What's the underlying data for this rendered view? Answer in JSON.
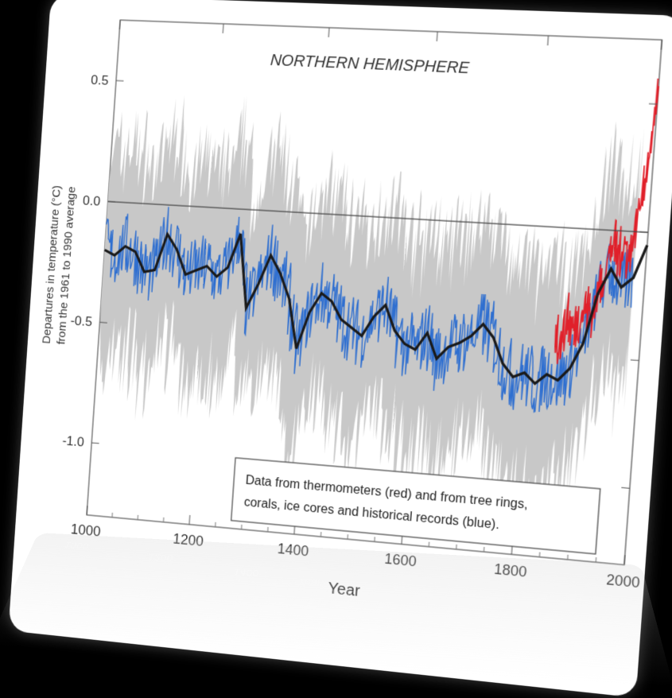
{
  "chart_data": {
    "type": "line",
    "title": "NORTHERN HEMISPHERE",
    "xlabel": "Year",
    "ylabel_line1": "Departures in temperature (°C)",
    "ylabel_line2": "from the 1961 to 1990 average",
    "xlim": [
      1000,
      2000
    ],
    "ylim": [
      -1.3,
      0.75
    ],
    "x_ticks": [
      1000,
      1200,
      1400,
      1600,
      1800,
      2000
    ],
    "x_tick_labels": [
      "1000",
      "1200",
      "1400",
      "1600",
      "1800",
      "2000"
    ],
    "y_ticks": [
      0.5,
      0.0,
      -0.5,
      -1.0
    ],
    "y_tick_labels": [
      "0.5",
      "0.0",
      "-0.5",
      "-1.0"
    ],
    "reference_line_y": 0.0,
    "annotation_line1": "Data from thermometers (red) and from tree rings,",
    "annotation_line2": "corals, ice cores and historical records (blue).",
    "colors": {
      "uncertainty": "#c8c8c8",
      "proxy": "#2f6fd0",
      "smoothed": "#1a1a1a",
      "instrumental": "#e0202a"
    },
    "series": [
      {
        "role": "proxy-smoothed",
        "x": [
          1000,
          1020,
          1040,
          1060,
          1080,
          1100,
          1120,
          1140,
          1160,
          1180,
          1200,
          1220,
          1240,
          1260,
          1280,
          1300,
          1320,
          1340,
          1360,
          1380,
          1400,
          1420,
          1440,
          1460,
          1480,
          1500,
          1520,
          1540,
          1560,
          1580,
          1600,
          1620,
          1640,
          1660,
          1680,
          1700,
          1720,
          1740,
          1760,
          1780,
          1800,
          1820,
          1840,
          1860,
          1880,
          1900,
          1920,
          1940,
          1960,
          1980,
          2000
        ],
        "values": [
          -0.2,
          -0.22,
          -0.18,
          -0.2,
          -0.28,
          -0.27,
          -0.12,
          -0.18,
          -0.28,
          -0.26,
          -0.24,
          -0.28,
          -0.24,
          -0.1,
          -0.4,
          -0.3,
          -0.18,
          -0.25,
          -0.35,
          -0.55,
          -0.4,
          -0.32,
          -0.35,
          -0.42,
          -0.45,
          -0.48,
          -0.4,
          -0.35,
          -0.45,
          -0.5,
          -0.52,
          -0.45,
          -0.55,
          -0.5,
          -0.48,
          -0.45,
          -0.4,
          -0.45,
          -0.55,
          -0.6,
          -0.58,
          -0.62,
          -0.58,
          -0.6,
          -0.55,
          -0.45,
          -0.25,
          -0.15,
          -0.22,
          -0.18,
          -0.05
        ]
      },
      {
        "role": "instrumental",
        "x": [
          1850,
          1860,
          1870,
          1880,
          1890,
          1900,
          1910,
          1920,
          1930,
          1940,
          1950,
          1960,
          1970,
          1980,
          1990,
          2000
        ],
        "values": [
          -0.4,
          -0.45,
          -0.35,
          -0.4,
          -0.35,
          -0.3,
          -0.35,
          -0.25,
          -0.15,
          -0.05,
          -0.1,
          -0.05,
          -0.1,
          0.05,
          0.25,
          0.55
        ]
      }
    ]
  }
}
